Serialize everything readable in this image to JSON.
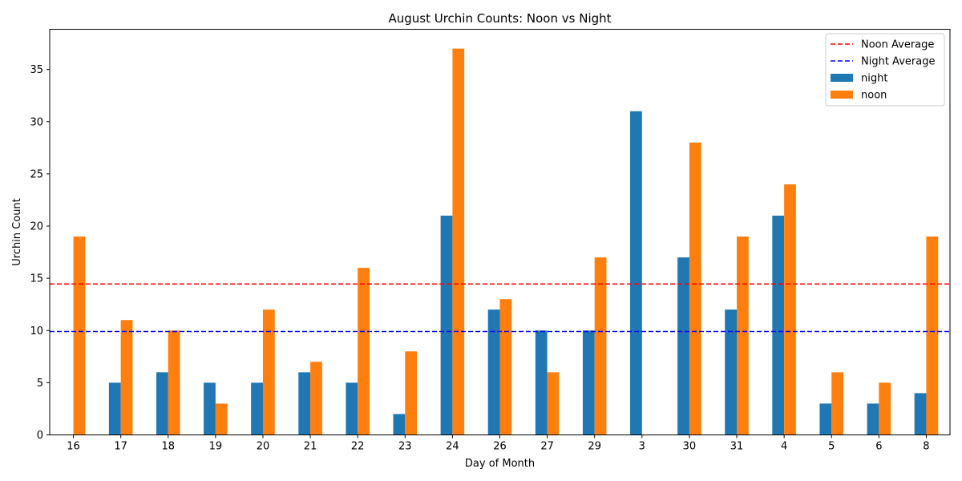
{
  "chart_data": {
    "type": "bar",
    "title": "August Urchin Counts: Noon vs Night",
    "xlabel": "Day of Month",
    "ylabel": "Urchin Count",
    "categories": [
      "16",
      "17",
      "18",
      "19",
      "20",
      "21",
      "22",
      "23",
      "24",
      "26",
      "27",
      "29",
      "3",
      "30",
      "31",
      "4",
      "5",
      "6",
      "8"
    ],
    "series": [
      {
        "name": "night",
        "color": "#1f77b4",
        "values": [
          0,
          5,
          6,
          5,
          5,
          6,
          5,
          2,
          21,
          12,
          10,
          10,
          31,
          17,
          12,
          21,
          3,
          3,
          4
        ]
      },
      {
        "name": "noon",
        "color": "#ff7f0e",
        "values": [
          19,
          11,
          10,
          3,
          12,
          7,
          16,
          8,
          37,
          13,
          6,
          17,
          0,
          28,
          19,
          24,
          6,
          5,
          19
        ]
      }
    ],
    "reference_lines": [
      {
        "name": "Noon Average",
        "value": 14.45,
        "color": "#ff0000",
        "style": "dashed"
      },
      {
        "name": "Night Average",
        "value": 9.9,
        "color": "#0000ff",
        "style": "dashed"
      }
    ],
    "ylim": [
      0,
      38.85
    ],
    "yticks": [
      0,
      5,
      10,
      15,
      20,
      25,
      30,
      35
    ],
    "grid": false,
    "legend_position": "top-right"
  }
}
